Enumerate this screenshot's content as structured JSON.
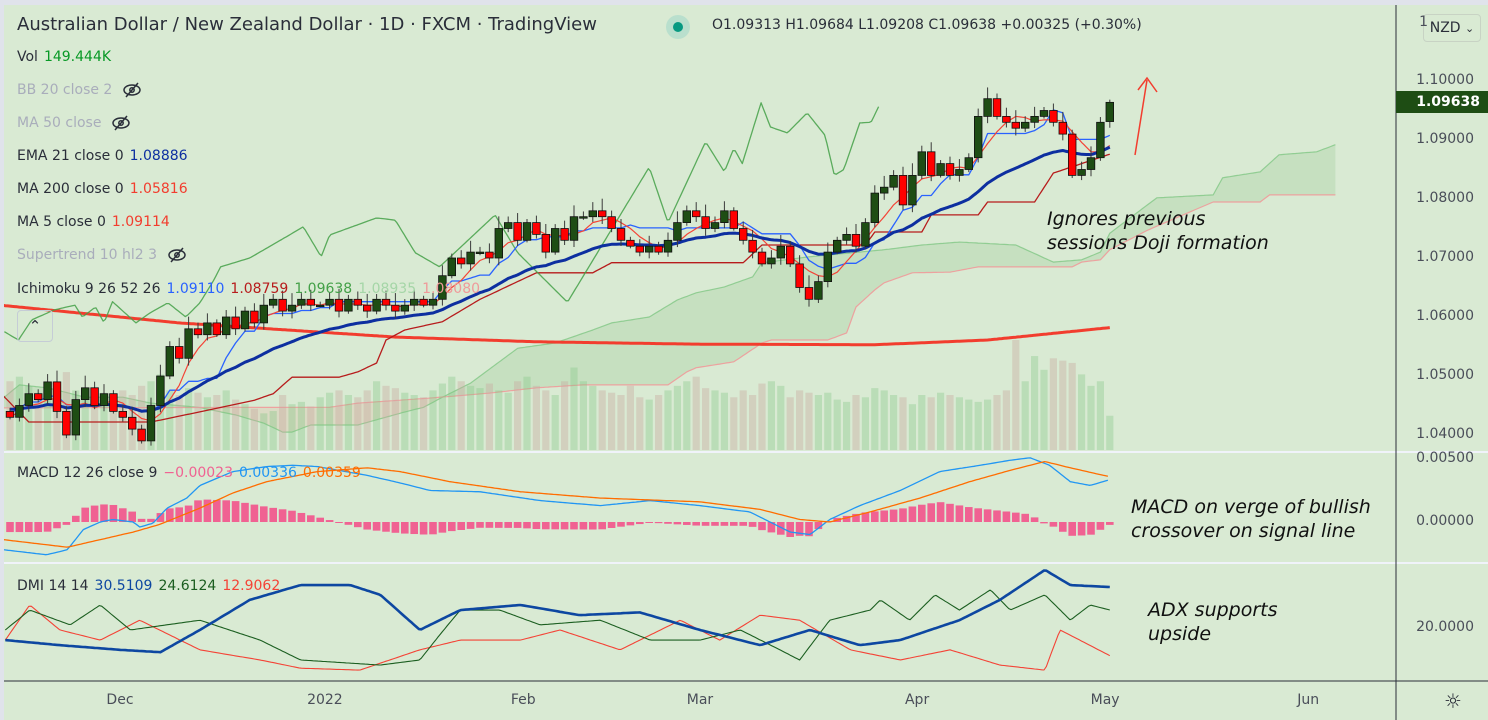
{
  "header": {
    "title": "Australian Dollar / New Zealand Dollar · 1D · FXCM · TradingView",
    "ohlc": "O1.09313 H1.09684 L1.09208 C1.09638 +0.00325 (+0.30%)",
    "currency": "NZD",
    "currency_chevron": "⌄",
    "settings_icon": "gear-icon",
    "collapse_icon": "chevron-up-icon"
  },
  "legend": {
    "vol": {
      "label": "Vol",
      "value": "149.444K"
    },
    "bb": {
      "label": "BB 20 close 2",
      "hidden": true
    },
    "ma50": {
      "label": "MA 50 close",
      "hidden": true
    },
    "ema21": {
      "label": "EMA 21 close 0",
      "value": "1.08886"
    },
    "ma200": {
      "label": "MA 200 close 0",
      "value": "1.05816"
    },
    "ma5": {
      "label": "MA 5 close 0",
      "value": "1.09114"
    },
    "supertrend": {
      "label": "Supertrend 10 hl2 3",
      "hidden": true
    },
    "ichimoku": {
      "label": "Ichimoku 9 26 52 26",
      "values": [
        "1.09110",
        "1.08759",
        "1.09638",
        "1.08935",
        "1.08080"
      ]
    },
    "macd": {
      "label": "MACD 12 26 close 9",
      "values": [
        "−0.00023",
        "0.00336",
        "0.00359"
      ]
    },
    "dmi": {
      "label": "DMI 14 14",
      "values": [
        "30.5109",
        "24.6124",
        "12.9062"
      ]
    }
  },
  "annotations": {
    "doji": [
      "Ignores previous",
      "sessions Doji formation"
    ],
    "macd": [
      "MACD on verge of bullish",
      "crossover on signal line"
    ],
    "adx": [
      "ADX supports",
      "upside"
    ]
  },
  "colors": {
    "up": "#1e4d14",
    "down": "#ff0000",
    "ema21": "#0d2fa0",
    "ma200": "#f23d2e",
    "ma5": "#f44336",
    "tenkan": "#2962ff",
    "kijun": "#b71c1c",
    "chikou": "#43a047",
    "macd": "#2196f3",
    "signal": "#ff6d00",
    "hist": "#f06292",
    "adx": "#0d47a1",
    "plusdi": "#1b5e20",
    "minusdi": "#f44336",
    "background": "#d9ead3",
    "price_badge": "#1e4d14"
  },
  "chart_data": {
    "type": "candlestick",
    "title": "Australian Dollar / New Zealand Dollar · 1D · FXCM",
    "x_ticks": [
      {
        "label": "Dec",
        "bar": 11.7
      },
      {
        "label": "2022",
        "bar": 33.5
      },
      {
        "label": "Feb",
        "bar": 54.6
      },
      {
        "label": "Mar",
        "bar": 73.4
      },
      {
        "label": "Apr",
        "bar": 96.5
      },
      {
        "label": "May",
        "bar": 116.5
      },
      {
        "label": "Jun",
        "bar": 138.1
      }
    ],
    "price_ticks": [
      "1.10000",
      "1.09000",
      "1.08000",
      "1.07000",
      "1.06000",
      "1.05000",
      "1.04000"
    ],
    "macd_ticks": [
      "0.00500",
      "0.00000"
    ],
    "dmi_ticks": [
      "20.0000"
    ],
    "last_price": "1.09638",
    "ylim": [
      1.0378,
      1.1035
    ],
    "last_bar": {
      "open": 1.09313,
      "high": 1.09684,
      "low": 1.09208,
      "close": 1.09638
    },
    "closes": [
      1.043,
      1.045,
      1.047,
      1.046,
      1.049,
      1.044,
      1.04,
      1.046,
      1.048,
      1.045,
      1.047,
      1.044,
      1.043,
      1.041,
      1.039,
      1.045,
      1.05,
      1.055,
      1.053,
      1.058,
      1.057,
      1.059,
      1.057,
      1.06,
      1.058,
      1.061,
      1.059,
      1.062,
      1.063,
      1.061,
      1.062,
      1.063,
      1.062,
      1.062,
      1.063,
      1.061,
      1.063,
      1.062,
      1.061,
      1.063,
      1.062,
      1.061,
      1.062,
      1.063,
      1.062,
      1.063,
      1.067,
      1.07,
      1.069,
      1.071,
      1.071,
      1.07,
      1.075,
      1.076,
      1.073,
      1.076,
      1.074,
      1.071,
      1.075,
      1.073,
      1.077,
      1.077,
      1.078,
      1.077,
      1.075,
      1.073,
      1.072,
      1.071,
      1.072,
      1.071,
      1.073,
      1.076,
      1.078,
      1.077,
      1.075,
      1.076,
      1.078,
      1.075,
      1.073,
      1.071,
      1.069,
      1.07,
      1.072,
      1.069,
      1.065,
      1.063,
      1.066,
      1.071,
      1.073,
      1.074,
      1.072,
      1.076,
      1.081,
      1.082,
      1.084,
      1.079,
      1.084,
      1.088,
      1.084,
      1.086,
      1.084,
      1.085,
      1.087,
      1.094,
      1.097,
      1.094,
      1.093,
      1.092,
      1.093,
      1.094,
      1.095,
      1.093,
      1.091,
      1.084,
      1.085,
      1.087,
      1.093,
      1.09638
    ],
    "volume_k": [
      300,
      320,
      280,
      250,
      270,
      300,
      340,
      260,
      240,
      220,
      250,
      230,
      260,
      240,
      280,
      300,
      330,
      260,
      240,
      270,
      250,
      230,
      240,
      260,
      220,
      200,
      180,
      160,
      170,
      240,
      200,
      210,
      190,
      230,
      250,
      260,
      240,
      230,
      260,
      300,
      280,
      270,
      250,
      240,
      230,
      260,
      290,
      320,
      300,
      280,
      270,
      290,
      260,
      250,
      300,
      320,
      280,
      260,
      240,
      300,
      360,
      300,
      280,
      260,
      250,
      240,
      280,
      230,
      220,
      240,
      260,
      280,
      300,
      320,
      270,
      260,
      250,
      230,
      260,
      240,
      290,
      300,
      280,
      230,
      260,
      250,
      240,
      250,
      220,
      210,
      240,
      230,
      270,
      260,
      240,
      230,
      200,
      240,
      230,
      250,
      240,
      230,
      220,
      210,
      220,
      240,
      260,
      480,
      300,
      410,
      350,
      400,
      390,
      380,
      330,
      280,
      300,
      149.444
    ],
    "ma200": [
      [
        -1,
        1.062
      ],
      [
        18,
        1.059
      ],
      [
        41,
        1.0566
      ],
      [
        56,
        1.0558
      ],
      [
        73,
        1.0554
      ],
      [
        92,
        1.0553
      ],
      [
        104,
        1.0561
      ],
      [
        117,
        1.0582
      ]
    ],
    "kijun": [
      [
        -1,
        1.0471
      ],
      [
        2,
        1.0422
      ],
      [
        15,
        1.0422
      ],
      [
        21,
        1.0442
      ],
      [
        26,
        1.0459
      ],
      [
        28,
        1.047
      ],
      [
        30,
        1.0498
      ],
      [
        35,
        1.0498
      ],
      [
        37,
        1.0507
      ],
      [
        39,
        1.0522
      ],
      [
        40,
        1.0561
      ],
      [
        42,
        1.0578
      ],
      [
        46,
        1.0592
      ],
      [
        50,
        1.063
      ],
      [
        56,
        1.0675
      ],
      [
        62,
        1.0675
      ],
      [
        64,
        1.0692
      ],
      [
        78,
        1.0692
      ],
      [
        80,
        1.0722
      ],
      [
        91,
        1.0722
      ],
      [
        92,
        1.0744
      ],
      [
        97,
        1.0744
      ],
      [
        98,
        1.0773
      ],
      [
        103,
        1.0773
      ],
      [
        104,
        1.0795
      ],
      [
        109,
        1.0795
      ],
      [
        111,
        1.0844
      ],
      [
        117,
        1.0876
      ]
    ],
    "chikou": [
      [
        -0.6,
        1.0575
      ],
      [
        0.9,
        1.0561
      ],
      [
        2.3,
        1.0595
      ],
      [
        4.7,
        1.0612
      ],
      [
        6.9,
        1.062
      ],
      [
        7.7,
        1.06
      ],
      [
        9.1,
        1.0617
      ],
      [
        10,
        1.059
      ],
      [
        10.9,
        1.0626
      ],
      [
        13.4,
        1.059
      ],
      [
        14.9,
        1.0607
      ],
      [
        16.8,
        1.0624
      ],
      [
        18.7,
        1.06
      ],
      [
        20.2,
        1.0624
      ],
      [
        21.7,
        1.0663
      ],
      [
        22.4,
        1.0685
      ],
      [
        25.5,
        1.07
      ],
      [
        29.4,
        1.0736
      ],
      [
        31.2,
        1.0753
      ],
      [
        33.1,
        1.0702
      ],
      [
        34,
        1.0739
      ],
      [
        39,
        1.0768
      ],
      [
        41,
        1.0764
      ],
      [
        43.1,
        1.0709
      ],
      [
        45.7,
        1.0685
      ],
      [
        51.6,
        1.0773
      ],
      [
        54,
        1.0709
      ],
      [
        59.3,
        1.0625
      ],
      [
        68,
        1.0854
      ],
      [
        70,
        1.076
      ],
      [
        74,
        1.0897
      ],
      [
        76,
        1.0846
      ],
      [
        77,
        1.0886
      ],
      [
        77.9,
        1.086
      ],
      [
        79.9,
        1.0963
      ],
      [
        80.9,
        1.0922
      ],
      [
        82.7,
        1.0912
      ],
      [
        84.8,
        1.0946
      ],
      [
        86.7,
        1.0908
      ],
      [
        87.7,
        1.084
      ],
      [
        88.7,
        1.085
      ],
      [
        90.4,
        1.0929
      ],
      [
        91.6,
        1.093
      ],
      [
        92.6,
        1.0963
      ]
    ],
    "senkou_a": [
      [
        -1,
        1.0459
      ],
      [
        1,
        1.0485
      ],
      [
        4,
        1.048
      ],
      [
        8,
        1.0464
      ],
      [
        12,
        1.0464
      ],
      [
        15,
        1.0454
      ],
      [
        20,
        1.0447
      ],
      [
        24,
        1.0434
      ],
      [
        27,
        1.042
      ],
      [
        29,
        1.0405
      ],
      [
        30,
        1.0405
      ],
      [
        32,
        1.0417
      ],
      [
        37,
        1.0417
      ],
      [
        42,
        1.0439
      ],
      [
        44,
        1.0447
      ],
      [
        46,
        1.0464
      ],
      [
        49,
        1.0488
      ],
      [
        54,
        1.0547
      ],
      [
        58,
        1.0556
      ],
      [
        62,
        1.0578
      ],
      [
        64,
        1.059
      ],
      [
        68,
        1.06
      ],
      [
        71,
        1.0629
      ],
      [
        73,
        1.0641
      ],
      [
        76,
        1.0651
      ],
      [
        79,
        1.0668
      ],
      [
        80,
        1.0692
      ],
      [
        85,
        1.0702
      ],
      [
        93,
        1.0714
      ],
      [
        97,
        1.0722
      ],
      [
        101,
        1.0727
      ],
      [
        107,
        1.0722
      ],
      [
        111,
        1.0693
      ],
      [
        114,
        1.0697
      ],
      [
        116,
        1.071
      ],
      [
        117,
        1.0742
      ],
      [
        122,
        1.0802
      ],
      [
        128,
        1.0807
      ],
      [
        129,
        1.0836
      ],
      [
        133,
        1.0846
      ],
      [
        135,
        1.0875
      ],
      [
        139,
        1.088
      ],
      [
        141,
        1.0892
      ]
    ],
    "senkou_b": [
      [
        -1,
        1.0446
      ],
      [
        34,
        1.0447
      ],
      [
        37,
        1.0454
      ],
      [
        45,
        1.0463
      ],
      [
        51,
        1.0471
      ],
      [
        56,
        1.048
      ],
      [
        61,
        1.0485
      ],
      [
        70,
        1.0485
      ],
      [
        72,
        1.0507
      ],
      [
        73,
        1.0514
      ],
      [
        77,
        1.0524
      ],
      [
        80,
        1.0556
      ],
      [
        81,
        1.0561
      ],
      [
        87,
        1.0561
      ],
      [
        89,
        1.0573
      ],
      [
        90,
        1.0617
      ],
      [
        92,
        1.0646
      ],
      [
        93,
        1.0658
      ],
      [
        96,
        1.0675
      ],
      [
        100,
        1.0676
      ],
      [
        103,
        1.0685
      ],
      [
        113,
        1.0685
      ],
      [
        114,
        1.0693
      ],
      [
        116,
        1.0697
      ],
      [
        117,
        1.0714
      ],
      [
        121,
        1.0747
      ],
      [
        128,
        1.0795
      ],
      [
        133,
        1.0795
      ],
      [
        134,
        1.0807
      ],
      [
        141,
        1.0807
      ]
    ],
    "macd": [
      [
        -0.7,
        -0.0022
      ],
      [
        3.9,
        -0.0026
      ],
      [
        6.1,
        -0.0022
      ],
      [
        7.8,
        -0.0006
      ],
      [
        9.6,
        0
      ],
      [
        10.9,
        0.0002
      ],
      [
        13.1,
        0
      ],
      [
        13.8,
        -0.0004
      ],
      [
        15.2,
        -0.0001
      ],
      [
        16.7,
        0.0011
      ],
      [
        18.8,
        0.0019
      ],
      [
        20.2,
        0.0029
      ],
      [
        23.7,
        0.004
      ],
      [
        27.3,
        0.0044
      ],
      [
        30.1,
        0.0045
      ],
      [
        32.7,
        0.0044
      ],
      [
        38,
        0.0037
      ],
      [
        41.5,
        0.0031
      ],
      [
        44.7,
        0.0025
      ],
      [
        50,
        0.0024
      ],
      [
        56.4,
        0.0017
      ],
      [
        62.8,
        0.0013
      ],
      [
        68.1,
        0.0017
      ],
      [
        73.4,
        0.0013
      ],
      [
        78.7,
        0.0008
      ],
      [
        83,
        -0.0008
      ],
      [
        85.1,
        -0.001
      ],
      [
        87.2,
        0.0002
      ],
      [
        90.4,
        0.0013
      ],
      [
        94.7,
        0.0025
      ],
      [
        98.9,
        0.004
      ],
      [
        103.2,
        0.0045
      ],
      [
        106.4,
        0.0049
      ],
      [
        108.5,
        0.0051
      ],
      [
        110.6,
        0.0045
      ],
      [
        112.8,
        0.0032
      ],
      [
        114.9,
        0.0029
      ],
      [
        117,
        0.00336
      ]
    ],
    "signal": [
      [
        -0.7,
        -0.0014
      ],
      [
        6.1,
        -0.002
      ],
      [
        9.6,
        -0.0014
      ],
      [
        13.1,
        -0.0008
      ],
      [
        15.9,
        -0.0002
      ],
      [
        20.2,
        0.0011
      ],
      [
        23.7,
        0.0023
      ],
      [
        27.3,
        0.0032
      ],
      [
        32.7,
        0.004
      ],
      [
        38,
        0.0043
      ],
      [
        41.5,
        0.004
      ],
      [
        46.8,
        0.0032
      ],
      [
        54.3,
        0.0024
      ],
      [
        62.8,
        0.0019
      ],
      [
        73.4,
        0.0016
      ],
      [
        79.8,
        0.001
      ],
      [
        84,
        0.0002
      ],
      [
        87.2,
        0
      ],
      [
        91.5,
        0.0008
      ],
      [
        96.8,
        0.0019
      ],
      [
        102.1,
        0.0032
      ],
      [
        106.4,
        0.0041
      ],
      [
        110.1,
        0.0048
      ],
      [
        112.8,
        0.0043
      ],
      [
        117,
        0.00359
      ]
    ],
    "adx": [
      [
        -0.5,
        16.9
      ],
      [
        5.3,
        15.6
      ],
      [
        11.7,
        14.4
      ],
      [
        16,
        13.8
      ],
      [
        20.2,
        19.5
      ],
      [
        25.5,
        27.2
      ],
      [
        30.9,
        31
      ],
      [
        36.2,
        31
      ],
      [
        39.4,
        28.5
      ],
      [
        43.6,
        19.5
      ],
      [
        47.9,
        24.6
      ],
      [
        54.3,
        25.9
      ],
      [
        60.6,
        23.3
      ],
      [
        67,
        24
      ],
      [
        73.4,
        19.5
      ],
      [
        79.8,
        15.6
      ],
      [
        85.1,
        19.5
      ],
      [
        90.4,
        15.6
      ],
      [
        94.7,
        16.9
      ],
      [
        97.9,
        19.5
      ],
      [
        101,
        22
      ],
      [
        105.3,
        27.2
      ],
      [
        110.1,
        34.9
      ],
      [
        112.8,
        31
      ],
      [
        117,
        30.51
      ]
    ],
    "plus_di": [
      [
        -0.5,
        19.5
      ],
      [
        2.1,
        24.6
      ],
      [
        6.4,
        20.8
      ],
      [
        9.6,
        25.9
      ],
      [
        12.8,
        19.5
      ],
      [
        20.2,
        22
      ],
      [
        26.6,
        16.9
      ],
      [
        30.9,
        11.8
      ],
      [
        39.4,
        10.5
      ],
      [
        43.6,
        11.8
      ],
      [
        45.7,
        18.2
      ],
      [
        47.9,
        24.6
      ],
      [
        52.1,
        24.6
      ],
      [
        56.4,
        20.8
      ],
      [
        62.8,
        22
      ],
      [
        68.1,
        16.9
      ],
      [
        73.4,
        16.9
      ],
      [
        77.7,
        19.5
      ],
      [
        81.9,
        14.4
      ],
      [
        84,
        11.8
      ],
      [
        87.2,
        22
      ],
      [
        91.5,
        24.6
      ],
      [
        92.6,
        27.2
      ],
      [
        95.7,
        22
      ],
      [
        98.4,
        28.5
      ],
      [
        101,
        24.6
      ],
      [
        104.3,
        29.8
      ],
      [
        106.4,
        24.6
      ],
      [
        110.1,
        28.5
      ],
      [
        112.8,
        22
      ],
      [
        114.9,
        25.9
      ],
      [
        117,
        24.61
      ]
    ],
    "minus_di": [
      [
        -0.5,
        16.9
      ],
      [
        2.1,
        25.9
      ],
      [
        5.3,
        19.5
      ],
      [
        9.6,
        16.9
      ],
      [
        13.8,
        22
      ],
      [
        20.2,
        14.4
      ],
      [
        26.6,
        11.8
      ],
      [
        30.9,
        9.7
      ],
      [
        37.2,
        9.2
      ],
      [
        43.6,
        14.4
      ],
      [
        47.9,
        16.9
      ],
      [
        54.3,
        16.9
      ],
      [
        58.5,
        19.5
      ],
      [
        64.9,
        14.4
      ],
      [
        71.3,
        22
      ],
      [
        75.5,
        16.9
      ],
      [
        79.8,
        23.3
      ],
      [
        84,
        22
      ],
      [
        89.4,
        14.4
      ],
      [
        94.7,
        11.8
      ],
      [
        100,
        14.4
      ],
      [
        105.3,
        10.5
      ],
      [
        110.1,
        9.2
      ],
      [
        111.7,
        19.5
      ],
      [
        113.8,
        16.9
      ],
      [
        117,
        12.91
      ]
    ]
  }
}
